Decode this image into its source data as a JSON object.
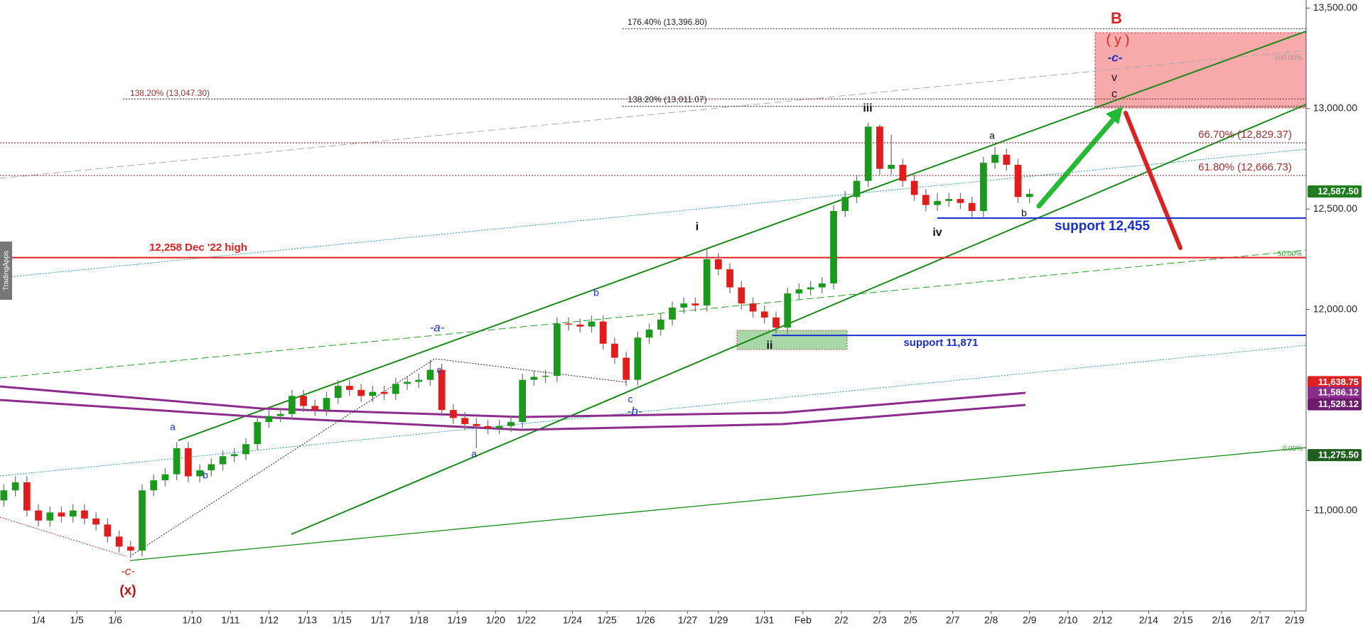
{
  "chart_data": {
    "type": "candlestick",
    "x": [
      0.1,
      0.4,
      0.7,
      1.0,
      1.3,
      1.6,
      1.9,
      2.2,
      2.5,
      2.8,
      3.1,
      3.4,
      3.7,
      4.0,
      4.3,
      4.6,
      4.9,
      5.2,
      5.5,
      5.8,
      6.1,
      6.4,
      6.7,
      7.0,
      7.3,
      7.6,
      7.9,
      8.2,
      8.5,
      8.8,
      9.1,
      9.4,
      9.7,
      10.0,
      10.3,
      10.6,
      10.9,
      11.2,
      11.5,
      11.8,
      12.1,
      12.4,
      12.7,
      13.0,
      13.3,
      13.6,
      13.9,
      14.2,
      14.5,
      14.8,
      15.1,
      15.4,
      15.7,
      16.0,
      16.3,
      16.6,
      16.9,
      17.2,
      17.5,
      17.8,
      18.1,
      18.4,
      18.7,
      19.0,
      19.3,
      19.6,
      19.9,
      20.2,
      20.5,
      20.8,
      21.1,
      21.4,
      21.7,
      22.0,
      22.3,
      22.6,
      22.9,
      23.2,
      23.5,
      23.8,
      24.1,
      24.4,
      24.7,
      25.0,
      25.3,
      25.6,
      25.9,
      26.2,
      26.5,
      26.8
    ],
    "open": [
      11050,
      11100,
      11140,
      11000,
      10950,
      10990,
      10970,
      11000,
      10960,
      10930,
      10870,
      10820,
      10800,
      11100,
      11150,
      11180,
      11310,
      11170,
      11200,
      11230,
      11270,
      11280,
      11330,
      11440,
      11470,
      11480,
      11570,
      11520,
      11500,
      11560,
      11620,
      11600,
      11570,
      11590,
      11580,
      11630,
      11640,
      11650,
      11700,
      11500,
      11460,
      11430,
      11420,
      11410,
      11420,
      11440,
      11650,
      11665,
      11670,
      11930,
      11925,
      11915,
      11940,
      11830,
      11760,
      11650,
      11860,
      11900,
      11950,
      12010,
      12030,
      12020,
      12250,
      12200,
      12110,
      12030,
      11990,
      11960,
      11910,
      12080,
      12100,
      12110,
      12130,
      12490,
      12560,
      12640,
      12910,
      12700,
      12720,
      12640,
      12570,
      12520,
      12540,
      12550,
      12530,
      12490,
      12730,
      12770,
      12720,
      12560
    ],
    "high": [
      11130,
      11170,
      11170,
      11030,
      11020,
      11020,
      11030,
      11030,
      10990,
      10960,
      10900,
      10850,
      11130,
      11180,
      11210,
      11340,
      11340,
      11230,
      11260,
      11300,
      11310,
      11360,
      11470,
      11500,
      11510,
      11600,
      11600,
      11550,
      11590,
      11650,
      11650,
      11630,
      11620,
      11620,
      11660,
      11670,
      11680,
      11750,
      11730,
      11530,
      11490,
      11460,
      11450,
      11450,
      11470,
      11680,
      11695,
      11700,
      11960,
      11960,
      11955,
      11970,
      11970,
      11860,
      11790,
      11890,
      11930,
      11980,
      12040,
      12060,
      12060,
      12300,
      12280,
      12230,
      12140,
      12060,
      12020,
      11990,
      12110,
      12130,
      12140,
      12160,
      12520,
      12590,
      12670,
      12930,
      12920,
      12870,
      12750,
      12670,
      12600,
      12580,
      12580,
      12580,
      12560,
      12760,
      12810,
      12800,
      12750,
      12600
    ],
    "low": [
      11020,
      11070,
      10970,
      10920,
      10920,
      10940,
      10940,
      10930,
      10900,
      10840,
      10790,
      10765,
      10770,
      11070,
      11120,
      11150,
      11140,
      11140,
      11170,
      11200,
      11240,
      11250,
      11300,
      11410,
      11440,
      11450,
      11490,
      11470,
      11470,
      11530,
      11570,
      11540,
      11540,
      11550,
      11550,
      11600,
      11610,
      11620,
      11470,
      11430,
      11400,
      11310,
      11380,
      11380,
      11390,
      11410,
      11620,
      11635,
      11640,
      11895,
      11885,
      11885,
      11800,
      11730,
      11620,
      11620,
      11830,
      11870,
      11920,
      11980,
      11990,
      11990,
      12170,
      12080,
      12000,
      11960,
      11930,
      11880,
      11880,
      12050,
      12070,
      12080,
      12100,
      12460,
      12530,
      12610,
      12670,
      12670,
      12610,
      12540,
      12490,
      12490,
      12510,
      12500,
      12460,
      12460,
      12700,
      12690,
      12530,
      12530
    ],
    "close": [
      11100,
      11140,
      11000,
      10950,
      10990,
      10970,
      11000,
      10960,
      10930,
      10870,
      10820,
      10800,
      11100,
      11150,
      11180,
      11310,
      11170,
      11200,
      11230,
      11270,
      11280,
      11330,
      11440,
      11470,
      11480,
      11570,
      11520,
      11500,
      11560,
      11620,
      11600,
      11570,
      11590,
      11580,
      11630,
      11640,
      11650,
      11700,
      11500,
      11460,
      11430,
      11420,
      11410,
      11420,
      11440,
      11650,
      11665,
      11670,
      11930,
      11925,
      11915,
      11940,
      11830,
      11760,
      11650,
      11860,
      11900,
      11950,
      12010,
      12030,
      12020,
      12250,
      12200,
      12110,
      12030,
      11990,
      11960,
      11910,
      12080,
      12100,
      12110,
      12130,
      12490,
      12560,
      12640,
      12910,
      12700,
      12720,
      12640,
      12570,
      12520,
      12540,
      12550,
      12530,
      12490,
      12730,
      12770,
      12720,
      12560,
      12575
    ],
    "up_color": "#1a9a1a",
    "down_color": "#e31b1b",
    "grid": false,
    "xlim": [
      0,
      34
    ],
    "xticks": [
      {
        "value": 1.0,
        "label": "1/4"
      },
      {
        "value": 2.0,
        "label": "1/5"
      },
      {
        "value": 3.0,
        "label": "1/6"
      },
      {
        "value": 5.0,
        "label": "1/10"
      },
      {
        "value": 6.0,
        "label": "1/11"
      },
      {
        "value": 7.0,
        "label": "1/12"
      },
      {
        "value": 8.0,
        "label": "1/13"
      },
      {
        "value": 8.9,
        "label": "1/15"
      },
      {
        "value": 9.9,
        "label": "1/17"
      },
      {
        "value": 10.9,
        "label": "1/18"
      },
      {
        "value": 11.9,
        "label": "1/19"
      },
      {
        "value": 12.9,
        "label": "1/20"
      },
      {
        "value": 13.7,
        "label": "1/22"
      },
      {
        "value": 14.9,
        "label": "1/24"
      },
      {
        "value": 15.8,
        "label": "1/25"
      },
      {
        "value": 16.8,
        "label": "1/26"
      },
      {
        "value": 17.9,
        "label": "1/27"
      },
      {
        "value": 18.7,
        "label": "1/29"
      },
      {
        "value": 19.9,
        "label": "1/31"
      },
      {
        "value": 20.9,
        "label": "Feb"
      },
      {
        "value": 21.9,
        "label": "2/2"
      },
      {
        "value": 22.9,
        "label": "2/3"
      },
      {
        "value": 23.7,
        "label": "2/5"
      },
      {
        "value": 24.8,
        "label": "2/7"
      },
      {
        "value": 25.8,
        "label": "2/8"
      },
      {
        "value": 26.8,
        "label": "2/9"
      },
      {
        "value": 27.8,
        "label": "2/10"
      },
      {
        "value": 28.7,
        "label": "2/12"
      },
      {
        "value": 29.9,
        "label": "2/14"
      },
      {
        "value": 30.8,
        "label": "2/15"
      },
      {
        "value": 31.8,
        "label": "2/16"
      },
      {
        "value": 32.8,
        "label": "2/17"
      },
      {
        "value": 33.7,
        "label": "2/19"
      }
    ],
    "ylim": [
      10500,
      13540
    ],
    "yticks": [
      {
        "value": 11000,
        "label": "11,000.00"
      },
      {
        "value": 12000,
        "label": "12,000.00"
      },
      {
        "value": 12500,
        "label": "12,500.00"
      },
      {
        "value": 13000,
        "label": "13,000.00"
      },
      {
        "value": 13500,
        "label": "13,500.00"
      }
    ],
    "levels": [
      {
        "value": 13396.8,
        "from": 16.2,
        "color": "#444444",
        "style": "dotted"
      },
      {
        "value": 13047.3,
        "from": 3.2,
        "color": "#a03030",
        "style": "dotted"
      },
      {
        "value": 13011.07,
        "from": 16.2,
        "color": "#444444",
        "style": "dotted"
      },
      {
        "value": 12829.37,
        "from": 0,
        "color": "#a03030",
        "style": "dotted"
      },
      {
        "value": 12666.73,
        "from": 0,
        "color": "#a03030",
        "style": "dotted"
      },
      {
        "value": 12258,
        "from": 0,
        "color": "#e02020",
        "style": "solid"
      },
      {
        "value": 12455,
        "from": 24.4,
        "color": "#1a2fd0",
        "style": "solid"
      },
      {
        "value": 11871,
        "from": 20.1,
        "color": "#1a2fd0",
        "style": "solid"
      }
    ],
    "price_tags": [
      {
        "value": 12587.5,
        "label": "12,587.50",
        "color": "#1e7e1e"
      },
      {
        "value": 11638.75,
        "label": "11,638.75",
        "color": "#e02020"
      },
      {
        "value": 11586.12,
        "label": "11,586.12",
        "color": "#8b2d8b"
      },
      {
        "value": 11528.12,
        "label": "11,528.12",
        "color": "#6e1a6e"
      },
      {
        "value": 11275.5,
        "label": "11,275.50",
        "color": "#1e5e1e"
      }
    ],
    "annotations": [
      "B",
      "( y )",
      "-c-",
      "v",
      "c",
      "iii",
      "a",
      "b",
      "iv",
      "i",
      "ii",
      "-a-",
      "b",
      "c",
      "c",
      "-b-",
      "a",
      "a",
      "b",
      "-c-",
      "(x)",
      "support 12,455",
      "support 11,871",
      "12,258 Dec '22 high",
      "176.40% (13,396.80)",
      "138.20% (13,047.30)",
      "138.20% (13,011.07)",
      "66.70% (12,829.37)",
      "61.80% (12,666.73)",
      "100.00%",
      "50.00%",
      "0.00%",
      "TradingApps"
    ]
  }
}
